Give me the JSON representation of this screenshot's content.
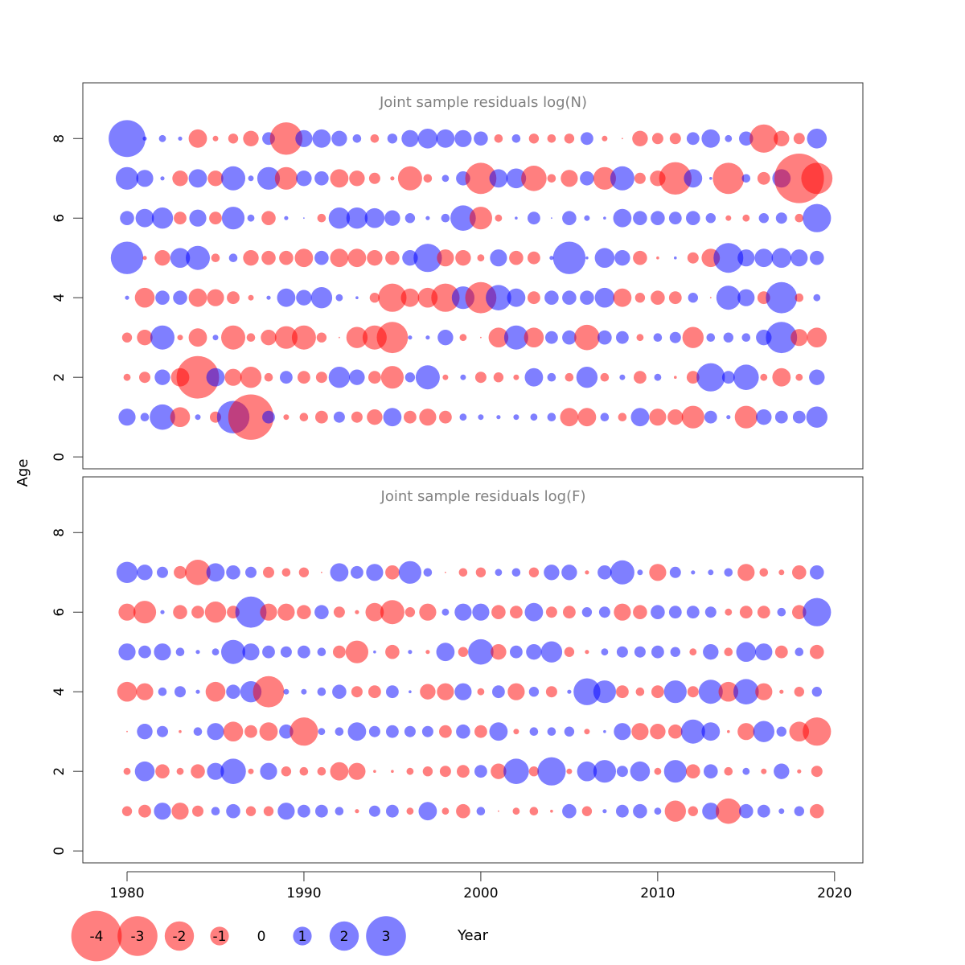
{
  "figure": {
    "ylabel": "Age",
    "xlabel": "Year",
    "x_ticks": [
      1980,
      1990,
      2000,
      2010,
      2020
    ],
    "y_ticks": [
      0,
      2,
      4,
      6,
      8
    ],
    "colors": {
      "negative": "#ff0000",
      "positive": "#0000ff",
      "frame": "#333333",
      "title": "#808080"
    }
  },
  "legend": {
    "items": [
      {
        "label": "-4",
        "value": -4
      },
      {
        "label": "-3",
        "value": -3
      },
      {
        "label": "-2",
        "value": -2
      },
      {
        "label": "-1",
        "value": -1
      },
      {
        "label": "0",
        "value": 0
      },
      {
        "label": "1",
        "value": 1
      },
      {
        "label": "2",
        "value": 2
      },
      {
        "label": "3",
        "value": 3
      }
    ]
  },
  "chart_data": [
    {
      "type": "scatter",
      "title": "Joint sample residuals log(N)",
      "xlim": [
        1977.5,
        2021.6
      ],
      "ylim": [
        -0.3,
        9.4
      ],
      "years": [
        1980,
        1981,
        1982,
        1983,
        1984,
        1985,
        1986,
        1987,
        1988,
        1989,
        1990,
        1991,
        1992,
        1993,
        1994,
        1995,
        1996,
        1997,
        1998,
        1999,
        2000,
        2001,
        2002,
        2003,
        2004,
        2005,
        2006,
        2007,
        2008,
        2009,
        2010,
        2011,
        2012,
        2013,
        2014,
        2015,
        2016,
        2017,
        2018,
        2019
      ],
      "ages": [
        1,
        2,
        3,
        4,
        5,
        6,
        7,
        8
      ],
      "residuals": [
        [
          1.2,
          0.6,
          1.8,
          -1.4,
          0.4,
          -0.8,
          2.3,
          -3.2,
          0.9,
          -0.4,
          -0.6,
          -0.9,
          0.8,
          -0.8,
          -1.1,
          1.3,
          -0.9,
          -1.2,
          -0.9,
          0.5,
          0.4,
          0.3,
          0.4,
          0.5,
          0.6,
          -1.3,
          -1.3,
          0.6,
          -0.6,
          1.3,
          -1.2,
          -1.1,
          -1.6,
          0.9,
          0.3,
          -1.6,
          1.1,
          0.9,
          0.9,
          1.5
        ],
        [
          -0.5,
          -0.8,
          1.1,
          -1.3,
          -3.0,
          1.3,
          -1.2,
          -1.5,
          -0.6,
          0.9,
          -0.9,
          -0.8,
          1.5,
          1.1,
          -0.9,
          -1.6,
          0.7,
          1.7,
          -0.4,
          0.4,
          -0.8,
          -0.7,
          -0.4,
          1.3,
          0.6,
          -0.6,
          1.5,
          -0.6,
          0.4,
          -0.9,
          0.5,
          -0.2,
          -0.9,
          2.0,
          0.9,
          1.8,
          -0.5,
          -1.3,
          -0.5,
          1.1
        ],
        [
          -0.7,
          -1.1,
          1.7,
          -0.4,
          -1.3,
          0.4,
          -1.7,
          -0.6,
          -1.1,
          -1.6,
          -1.7,
          -0.7,
          -0.1,
          -1.5,
          -1.7,
          -2.2,
          0.3,
          0.3,
          1.1,
          -0.5,
          -0.1,
          -1.4,
          1.7,
          -1.4,
          0.9,
          1.0,
          -1.8,
          1.0,
          0.9,
          -0.5,
          0.6,
          0.8,
          -1.5,
          0.6,
          0.7,
          0.6,
          1.1,
          2.2,
          -1.2,
          -1.4
        ],
        [
          0.3,
          -1.4,
          1.0,
          1.0,
          -1.3,
          -1.2,
          -0.9,
          -0.4,
          0.3,
          1.3,
          1.1,
          1.5,
          0.5,
          0.2,
          -0.7,
          -2.0,
          -1.3,
          -1.4,
          -2.0,
          1.6,
          -2.2,
          1.8,
          1.3,
          -0.9,
          1.0,
          1.0,
          1.0,
          1.4,
          -1.3,
          -0.7,
          -1.0,
          -0.9,
          0.7,
          -0.1,
          1.7,
          1.2,
          -0.9,
          2.2,
          -0.6,
          0.5
        ],
        [
          2.3,
          -0.3,
          -1.1,
          1.4,
          1.7,
          -0.6,
          0.6,
          -1.1,
          -1.0,
          -1.0,
          -1.3,
          1.0,
          -1.3,
          -1.3,
          -1.1,
          -1.0,
          1.1,
          2.0,
          -1.2,
          -1.1,
          -0.5,
          1.2,
          -1.0,
          -0.9,
          0.3,
          2.3,
          0.2,
          1.4,
          1.1,
          -1.0,
          -0.2,
          0.2,
          -0.8,
          -1.3,
          2.1,
          1.2,
          1.3,
          1.4,
          1.2,
          1.0
        ],
        [
          1.0,
          1.3,
          1.5,
          -0.9,
          1.2,
          -0.9,
          1.6,
          0.5,
          -1.0,
          0.3,
          0.1,
          -0.6,
          1.5,
          1.5,
          1.4,
          1.1,
          0.7,
          0.3,
          0.6,
          1.8,
          -1.6,
          -0.5,
          0.2,
          0.9,
          0.1,
          1.0,
          0.4,
          0.2,
          1.3,
          1.0,
          1.0,
          0.9,
          1.0,
          0.7,
          -0.4,
          -0.5,
          0.7,
          0.8,
          -0.6,
          2.0
        ],
        [
          1.6,
          1.2,
          0.3,
          -1.1,
          1.3,
          -1.1,
          1.7,
          0.4,
          1.6,
          -1.6,
          1.1,
          1.0,
          -1.3,
          -1.1,
          -0.8,
          -0.3,
          -1.7,
          -0.6,
          0.5,
          1.0,
          -2.2,
          1.3,
          1.4,
          -1.8,
          -0.6,
          -1.2,
          1.0,
          -1.6,
          1.7,
          -0.8,
          -1.1,
          -2.3,
          1.3,
          0.2,
          -2.2,
          0.6,
          -0.9,
          1.3,
          -3.5,
          -2.2
        ],
        [
          2.6,
          0.3,
          0.5,
          0.3,
          -1.3,
          -0.4,
          -0.7,
          -1.1,
          0.9,
          -2.3,
          1.2,
          1.3,
          1.1,
          0.6,
          -0.6,
          0.7,
          1.2,
          1.4,
          1.3,
          1.2,
          1.0,
          -0.6,
          0.6,
          -0.7,
          -0.6,
          -0.7,
          0.9,
          -0.4,
          -0.1,
          -1.1,
          -0.8,
          -0.8,
          0.9,
          1.3,
          0.5,
          1.0,
          -2.0,
          -1.1,
          -0.8,
          1.4
        ]
      ]
    },
    {
      "type": "scatter",
      "title": "Joint sample residuals log(F)",
      "xlim": [
        1977.5,
        2021.6
      ],
      "ylim": [
        -0.3,
        9.4
      ],
      "years": [
        1980,
        1981,
        1982,
        1983,
        1984,
        1985,
        1986,
        1987,
        1988,
        1989,
        1990,
        1991,
        1992,
        1993,
        1994,
        1995,
        1996,
        1997,
        1998,
        1999,
        2000,
        2001,
        2002,
        2003,
        2004,
        2005,
        2006,
        2007,
        2008,
        2009,
        2010,
        2011,
        2012,
        2013,
        2014,
        2015,
        2016,
        2017,
        2018,
        2019
      ],
      "ages": [
        1,
        2,
        3,
        4,
        5,
        6,
        7
      ],
      "residuals": [
        [
          -0.7,
          -0.9,
          1.2,
          -1.2,
          -0.8,
          0.6,
          1.0,
          -0.7,
          -0.7,
          1.2,
          0.9,
          0.9,
          0.6,
          -0.3,
          0.8,
          0.9,
          -0.5,
          1.3,
          -0.5,
          -1.0,
          0.6,
          -0.1,
          -0.5,
          -0.6,
          -0.2,
          1.0,
          -0.7,
          0.3,
          0.9,
          1.0,
          0.5,
          -1.5,
          -0.7,
          1.2,
          -1.8,
          1.0,
          0.9,
          0.4,
          0.7,
          -1.0
        ],
        [
          -0.5,
          1.4,
          -1.0,
          -0.5,
          -1.0,
          1.2,
          1.8,
          -0.4,
          1.2,
          -0.7,
          -0.6,
          -0.6,
          -1.3,
          -1.2,
          -0.2,
          -0.2,
          -0.5,
          -0.7,
          -0.8,
          -0.9,
          0.9,
          -1.1,
          1.8,
          -0.7,
          2.0,
          -0.4,
          1.4,
          1.6,
          0.8,
          1.4,
          -0.5,
          1.6,
          -1.0,
          1.0,
          -0.6,
          0.5,
          -0.4,
          1.1,
          -0.3,
          -0.8
        ],
        [
          -0.1,
          1.1,
          0.8,
          -0.2,
          0.6,
          1.2,
          -1.4,
          -0.9,
          -1.3,
          1.0,
          -2.0,
          0.5,
          0.6,
          1.3,
          0.8,
          0.9,
          0.8,
          0.8,
          -0.9,
          1.0,
          -0.9,
          1.3,
          -0.4,
          0.6,
          0.6,
          0.7,
          -0.4,
          0.2,
          1.2,
          -1.2,
          -1.1,
          -1.0,
          1.7,
          1.3,
          -0.2,
          -1.2,
          1.5,
          0.7,
          -1.4,
          -2.0
        ],
        [
          -1.4,
          -1.2,
          0.6,
          0.8,
          0.3,
          -1.4,
          1.0,
          1.5,
          -2.2,
          0.4,
          0.4,
          0.6,
          1.0,
          -0.8,
          -0.9,
          0.9,
          0.2,
          -1.1,
          -1.2,
          1.2,
          -0.5,
          0.9,
          -1.2,
          0.7,
          -0.8,
          0.3,
          1.9,
          1.6,
          -0.9,
          -0.6,
          -0.9,
          1.6,
          -0.8,
          1.7,
          -1.4,
          1.8,
          -1.2,
          -0.3,
          -0.7,
          0.7
        ],
        [
          1.2,
          0.9,
          1.2,
          0.6,
          0.3,
          0.5,
          1.7,
          1.2,
          0.9,
          0.8,
          0.9,
          0.6,
          -0.9,
          -1.6,
          0.2,
          -1.0,
          0.3,
          -0.3,
          1.3,
          -0.7,
          1.8,
          -1.1,
          0.9,
          1.1,
          1.5,
          -0.7,
          -0.3,
          0.5,
          0.8,
          0.8,
          0.9,
          0.7,
          -0.5,
          1.1,
          -0.6,
          1.4,
          1.2,
          -0.9,
          0.6,
          -1.0
        ],
        [
          -1.2,
          -1.6,
          0.3,
          -1.0,
          -0.9,
          -1.5,
          -0.9,
          2.2,
          -1.2,
          -1.2,
          -1.0,
          1.0,
          -0.8,
          -0.3,
          -1.3,
          -1.7,
          -0.7,
          -1.2,
          0.5,
          1.2,
          1.2,
          -1.0,
          -0.9,
          1.3,
          -0.8,
          -0.9,
          0.7,
          0.8,
          -1.2,
          -1.0,
          1.0,
          0.9,
          0.9,
          0.8,
          -0.5,
          -0.9,
          -0.9,
          0.6,
          -1.0,
          2.0
        ],
        [
          1.5,
          1.1,
          0.8,
          -0.9,
          -1.8,
          1.3,
          1.0,
          0.8,
          -0.8,
          -0.6,
          -0.7,
          -0.1,
          1.3,
          0.9,
          1.2,
          -1.0,
          1.6,
          0.6,
          -0.1,
          -0.6,
          -0.7,
          0.5,
          0.6,
          -0.7,
          1.1,
          1.1,
          -0.3,
          1.0,
          1.7,
          0.4,
          -1.2,
          0.8,
          0.3,
          0.4,
          0.6,
          -1.2,
          -0.6,
          -0.4,
          -1.0,
          1.0
        ]
      ]
    }
  ]
}
